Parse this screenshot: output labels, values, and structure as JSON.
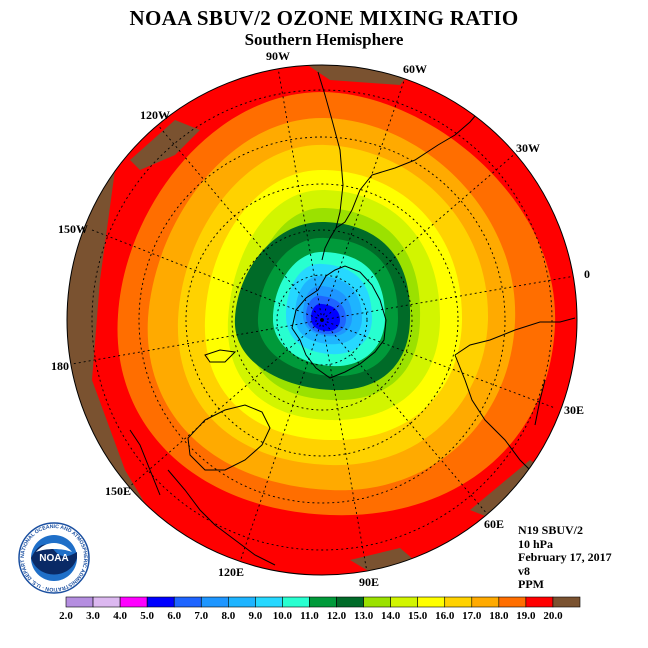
{
  "title": "NOAA SBUV/2 OZONE MIXING RATIO",
  "subtitle": "Southern Hemisphere",
  "longitude_labels": {
    "w90": "90W",
    "w60": "60W",
    "w30": "30W",
    "lon0": "0",
    "w120": "120W",
    "w150": "150W",
    "lon180": "180",
    "e30": "30E",
    "e60": "60E",
    "e90": "90E",
    "e120": "120E",
    "e150": "150E"
  },
  "info": {
    "instrument": "N19 SBUV/2",
    "pressure": "10 hPa",
    "date": "February 17, 2017",
    "version": "v8",
    "units": "PPM"
  },
  "logo": {
    "text": "NOAA",
    "ring_text": "NATIONAL OCEANIC AND ATMOSPHERIC ADMINISTRATION · U.S. DEPARTMENT OF COMMERCE"
  },
  "colorbar": {
    "ticks": [
      "2.0",
      "3.0",
      "4.0",
      "5.0",
      "6.0",
      "7.0",
      "8.0",
      "9.0",
      "10.0",
      "11.0",
      "12.0",
      "13.0",
      "14.0",
      "15.0",
      "16.0",
      "17.0",
      "18.0",
      "19.0",
      "20.0"
    ],
    "colors": [
      "#b58ee0",
      "#dcb8f0",
      "#ff00ff",
      "#0000ff",
      "#1e64ff",
      "#1e96ff",
      "#1eb4ff",
      "#26d8ff",
      "#28ffd0",
      "#009a3a",
      "#006b28",
      "#9be100",
      "#d2f500",
      "#ffff00",
      "#ffd200",
      "#ffaa00",
      "#ff6e00",
      "#ff0000",
      "#7a5230"
    ]
  },
  "map_colors": {
    "land_mask": "#7a5230",
    "red": "#ff0000",
    "orange_red": "#ff6e00",
    "orange": "#ffaa00",
    "gold": "#ffd200",
    "yellow": "#ffff00",
    "lime": "#d2f500",
    "green_yellow": "#9be100",
    "dark_green": "#006b28",
    "green": "#009a3a",
    "aqua": "#28ffd0",
    "cyan": "#26d8ff",
    "sky": "#1eb4ff",
    "blue_light": "#1e96ff",
    "blue_mid": "#1e64ff",
    "blue": "#0000ff"
  }
}
